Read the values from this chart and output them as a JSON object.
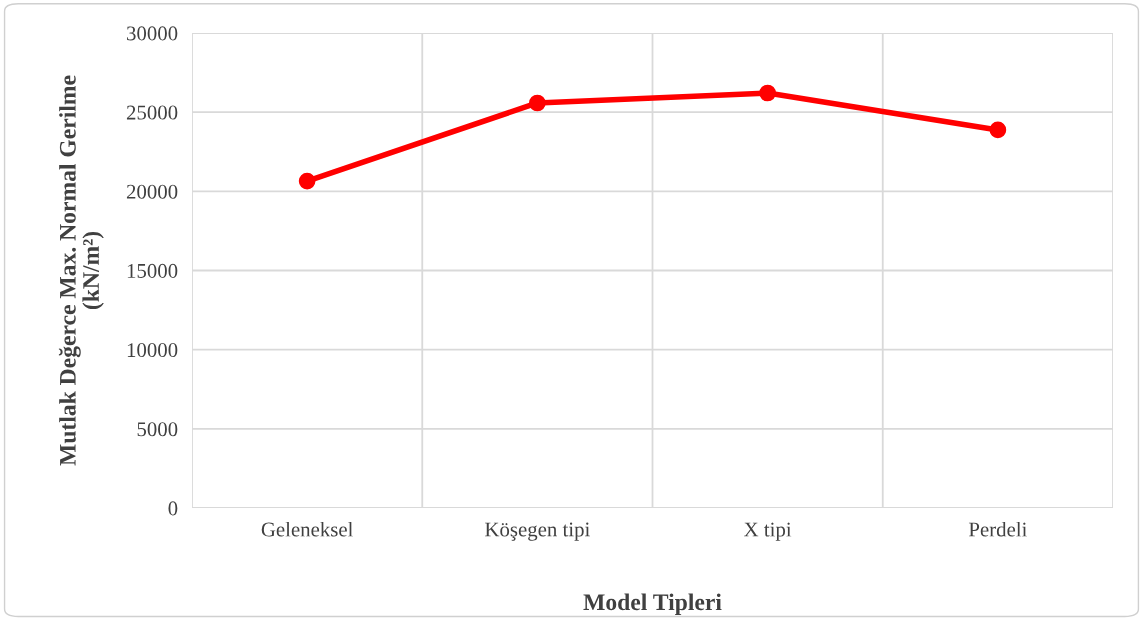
{
  "chart_data": {
    "type": "line",
    "xlabel": "Model Tipleri",
    "ylabel": "Mutlak Değerce Max. Normal Gerilme\n(kN/m²)",
    "categories": [
      "Geleneksel",
      "Köşegen tipi",
      "X tipi",
      "Perdeli"
    ],
    "series": [
      {
        "color": "#ff0000",
        "values": [
          20650,
          25580,
          26210,
          23880
        ]
      }
    ],
    "ylim": [
      0,
      30000
    ],
    "yticks": [
      0,
      5000,
      10000,
      15000,
      20000,
      25000,
      30000
    ],
    "grid": true,
    "marker": "circle",
    "line_style": "solid"
  }
}
